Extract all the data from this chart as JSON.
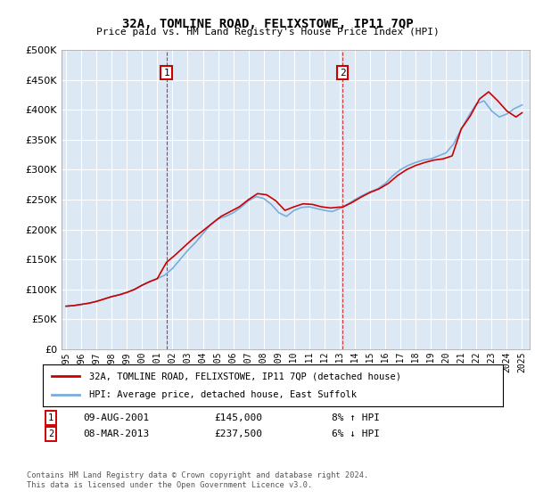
{
  "title": "32A, TOMLINE ROAD, FELIXSTOWE, IP11 7QP",
  "subtitle": "Price paid vs. HM Land Registry's House Price Index (HPI)",
  "hpi_label": "HPI: Average price, detached house, East Suffolk",
  "price_label": "32A, TOMLINE ROAD, FELIXSTOWE, IP11 7QP (detached house)",
  "footer": "Contains HM Land Registry data © Crown copyright and database right 2024.\nThis data is licensed under the Open Government Licence v3.0.",
  "ylim": [
    0,
    500000
  ],
  "yticks": [
    0,
    50000,
    100000,
    150000,
    200000,
    250000,
    300000,
    350000,
    400000,
    450000,
    500000
  ],
  "background_color": "#dce9f5",
  "plot_bg": "#dce9f5",
  "marker1_x": 2001.6,
  "marker2_x": 2013.2,
  "price_color": "#cc0000",
  "hpi_color": "#7aacdc",
  "marker_box_color": "#cc0000",
  "xlim_left": 1994.7,
  "xlim_right": 2025.5,
  "hpi_years": [
    1995.0,
    1995.5,
    1996.0,
    1996.5,
    1997.0,
    1997.5,
    1998.0,
    1998.5,
    1999.0,
    1999.5,
    2000.0,
    2000.5,
    2001.0,
    2001.5,
    2002.0,
    2002.5,
    2003.0,
    2003.5,
    2004.0,
    2004.5,
    2005.0,
    2005.5,
    2006.0,
    2006.5,
    2007.0,
    2007.5,
    2008.0,
    2008.5,
    2009.0,
    2009.5,
    2010.0,
    2010.5,
    2011.0,
    2011.5,
    2012.0,
    2012.5,
    2013.0,
    2013.5,
    2014.0,
    2014.5,
    2015.0,
    2015.5,
    2016.0,
    2016.5,
    2017.0,
    2017.5,
    2018.0,
    2018.5,
    2019.0,
    2019.5,
    2020.0,
    2020.5,
    2021.0,
    2021.5,
    2022.0,
    2022.5,
    2023.0,
    2023.5,
    2024.0,
    2024.5,
    2025.0
  ],
  "hpi_values": [
    72000,
    73000,
    75000,
    77000,
    80000,
    84000,
    88000,
    91000,
    95000,
    100000,
    107000,
    113000,
    118000,
    124000,
    135000,
    150000,
    165000,
    178000,
    193000,
    208000,
    218000,
    222000,
    228000,
    237000,
    248000,
    255000,
    252000,
    242000,
    228000,
    222000,
    232000,
    237000,
    238000,
    235000,
    232000,
    230000,
    235000,
    242000,
    250000,
    257000,
    263000,
    268000,
    277000,
    290000,
    300000,
    307000,
    312000,
    316000,
    318000,
    323000,
    328000,
    343000,
    368000,
    390000,
    410000,
    415000,
    398000,
    388000,
    393000,
    402000,
    408000
  ],
  "price_years": [
    1995.0,
    1995.5,
    1996.0,
    1996.5,
    1997.0,
    1997.5,
    1998.0,
    1998.5,
    1999.0,
    1999.5,
    2000.0,
    2000.5,
    2001.0,
    2001.6,
    2002.2,
    2002.8,
    2003.4,
    2004.0,
    2004.6,
    2005.2,
    2005.8,
    2006.4,
    2007.0,
    2007.6,
    2008.2,
    2008.8,
    2009.4,
    2010.0,
    2010.6,
    2011.2,
    2011.8,
    2012.4,
    2013.0,
    2013.2,
    2013.8,
    2014.4,
    2015.0,
    2015.6,
    2016.2,
    2016.8,
    2017.4,
    2018.0,
    2018.6,
    2019.2,
    2019.8,
    2020.4,
    2021.0,
    2021.6,
    2022.2,
    2022.8,
    2023.4,
    2024.0,
    2024.6,
    2025.0
  ],
  "price_values": [
    72000,
    73000,
    75000,
    77000,
    80000,
    84000,
    88000,
    91000,
    95000,
    100000,
    107000,
    113000,
    118000,
    145000,
    158000,
    172000,
    186000,
    198000,
    210000,
    222000,
    230000,
    238000,
    250000,
    260000,
    258000,
    248000,
    232000,
    238000,
    243000,
    242000,
    238000,
    236000,
    237500,
    237500,
    245000,
    254000,
    262000,
    268000,
    277000,
    290000,
    300000,
    307000,
    312000,
    316000,
    318000,
    323000,
    368000,
    390000,
    418000,
    430000,
    415000,
    398000,
    388000,
    395000
  ]
}
